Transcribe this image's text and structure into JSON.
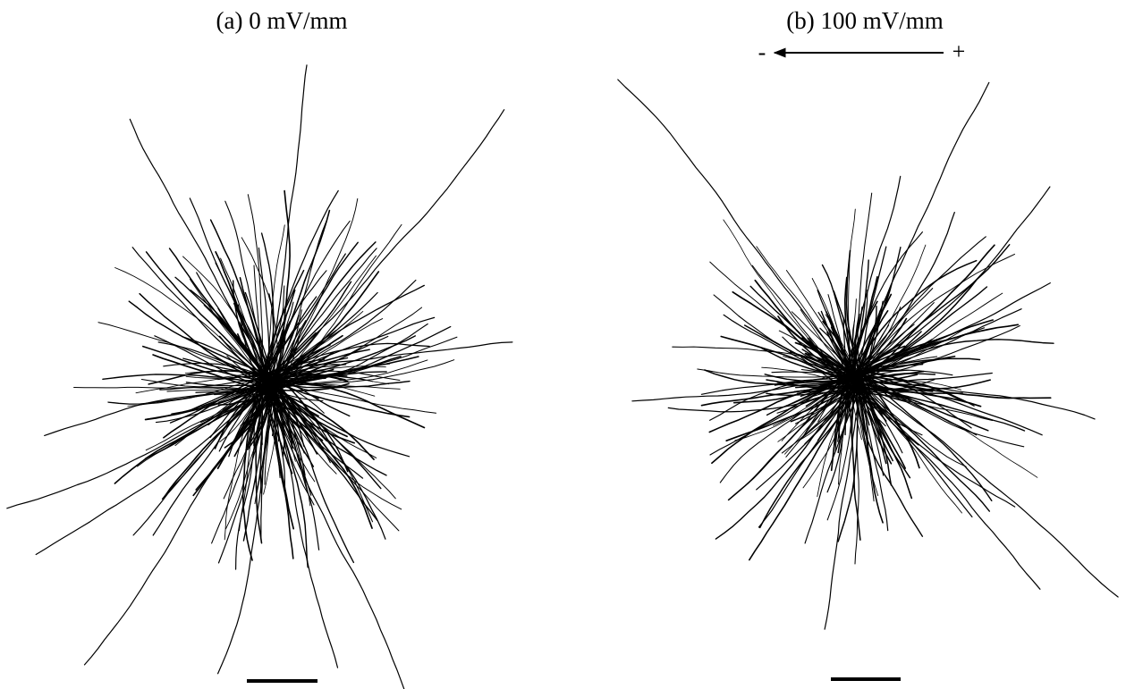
{
  "panels": [
    {
      "label": "(a) 0 mV/mm"
    },
    {
      "label": "(b) 100 mV/mm",
      "field": {
        "negative": "-",
        "positive": "+"
      }
    }
  ]
}
